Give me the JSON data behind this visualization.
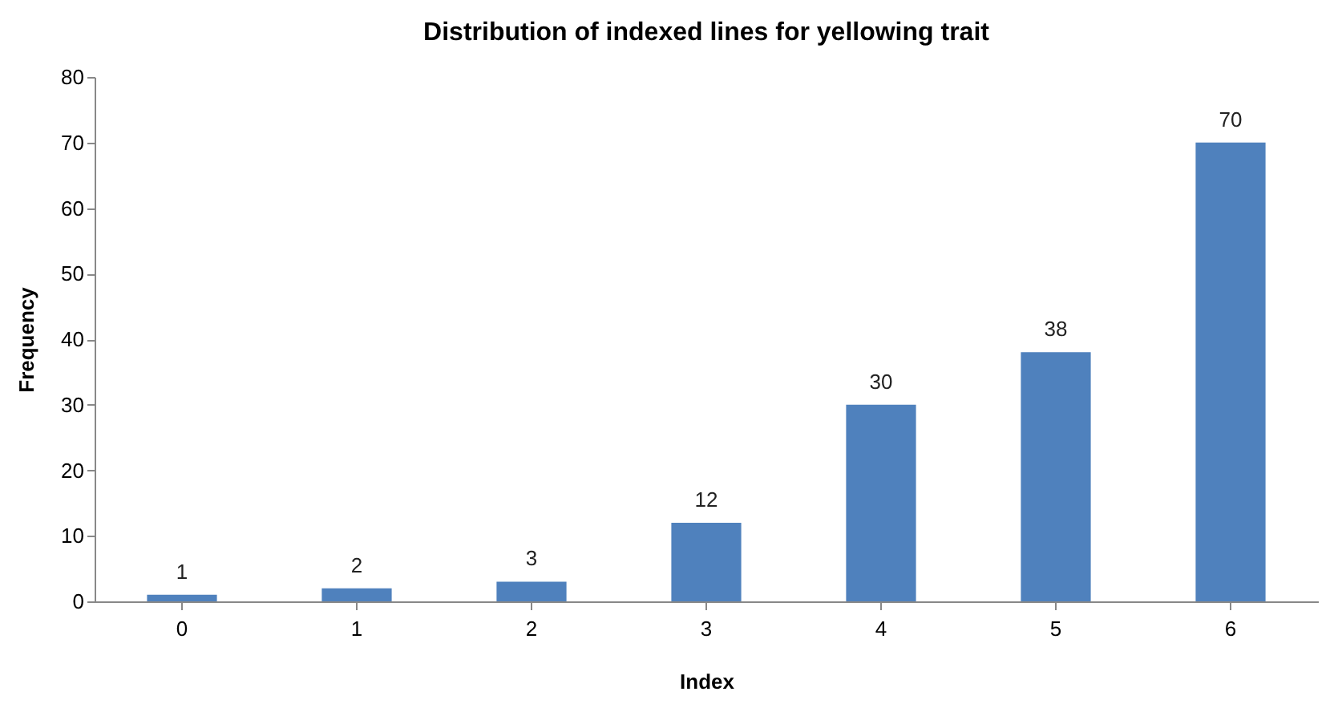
{
  "chart_data": {
    "type": "bar",
    "title": "Distribution of indexed lines for yellowing trait",
    "xlabel": "Index",
    "ylabel": "Frequency",
    "categories": [
      "0",
      "1",
      "2",
      "3",
      "4",
      "5",
      "6"
    ],
    "values": [
      1,
      2,
      3,
      12,
      30,
      38,
      70
    ],
    "color": "#4f81bd",
    "ylim": [
      0,
      80
    ],
    "yticks": [
      0,
      10,
      20,
      30,
      40,
      50,
      60,
      70,
      80
    ],
    "grid": false,
    "data_labels": true
  }
}
